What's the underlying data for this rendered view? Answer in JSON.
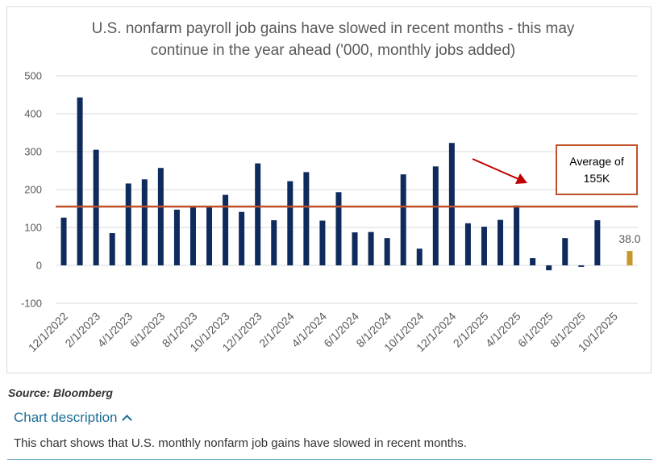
{
  "chart_data": {
    "type": "bar",
    "title_lines": [
      "U.S. nonfarm payroll job gains have slowed in recent months - this may",
      "continue in the year ahead ('000, monthly jobs added)"
    ],
    "categories": [
      "12/1/2022",
      "1/1/2023",
      "2/1/2023",
      "3/1/2023",
      "4/1/2023",
      "5/1/2023",
      "6/1/2023",
      "7/1/2023",
      "8/1/2023",
      "9/1/2023",
      "10/1/2023",
      "11/1/2023",
      "12/1/2023",
      "1/1/2024",
      "2/1/2024",
      "3/1/2024",
      "4/1/2024",
      "5/1/2024",
      "6/1/2024",
      "7/1/2024",
      "8/1/2024",
      "9/1/2024",
      "10/1/2024",
      "11/1/2024",
      "12/1/2024",
      "1/1/2025",
      "2/1/2025",
      "3/1/2025",
      "4/1/2025",
      "5/1/2025",
      "6/1/2025",
      "7/1/2025",
      "8/1/2025",
      "9/1/2025",
      "10/1/2025",
      "11/1/2025"
    ],
    "tick_labels": [
      "12/1/2022",
      "2/1/2023",
      "4/1/2023",
      "6/1/2023",
      "8/1/2023",
      "10/1/2023",
      "12/1/2023",
      "2/1/2024",
      "4/1/2024",
      "6/1/2024",
      "8/1/2024",
      "10/1/2024",
      "12/1/2024",
      "2/1/2025",
      "4/1/2025",
      "6/1/2025",
      "8/1/2025",
      "10/1/2025"
    ],
    "values": [
      126,
      443,
      305,
      85,
      216,
      227,
      257,
      147,
      155,
      155,
      186,
      141,
      269,
      119,
      222,
      246,
      118,
      193,
      87,
      88,
      72,
      240,
      44,
      261,
      323,
      111,
      102,
      120,
      158,
      19,
      -13,
      72,
      -4,
      119,
      null,
      38
    ],
    "highlight": {
      "index": 35,
      "label": "38.0",
      "color": "#c9962a"
    },
    "bar_color": "#0f2a5c",
    "average": {
      "value": 155,
      "color": "#c0502a",
      "label_lines": [
        "Average of",
        "155K"
      ]
    },
    "arrow_color": "#c00000",
    "ylim": [
      -100,
      500
    ],
    "yticks": [
      -100,
      0,
      100,
      200,
      300,
      400,
      500
    ],
    "xlabel": "",
    "ylabel": ""
  },
  "source": "Source: Bloomberg",
  "description": {
    "toggle_label": "Chart description",
    "text": "This chart shows that U.S. monthly nonfarm job gains have slowed in recent months."
  }
}
